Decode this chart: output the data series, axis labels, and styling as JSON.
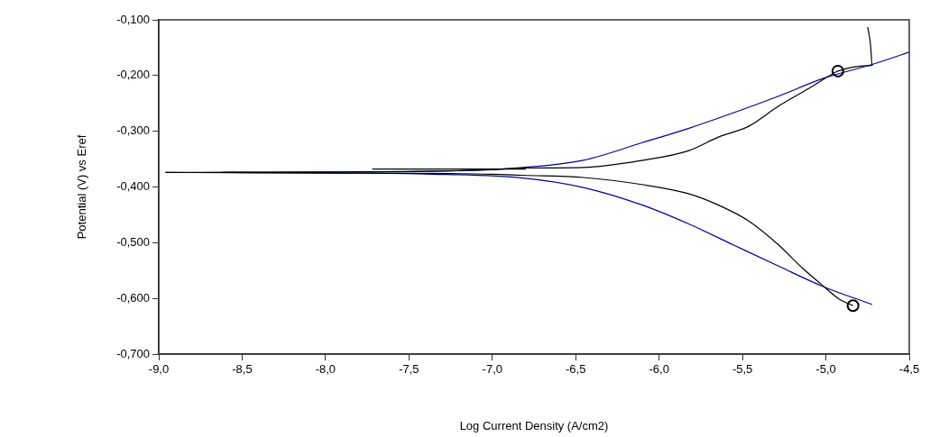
{
  "chart_data": {
    "type": "line",
    "xlabel": "Log Current Density (A/cm2)",
    "ylabel": "Potential (V) vs Eref",
    "xlim": [
      -9.0,
      -4.5
    ],
    "ylim": [
      -0.7,
      -0.1
    ],
    "xticks": [
      {
        "value": -9.0,
        "label": "-9,0"
      },
      {
        "value": -8.5,
        "label": "-8,5"
      },
      {
        "value": -8.0,
        "label": "-8,0"
      },
      {
        "value": -7.5,
        "label": "-7,5"
      },
      {
        "value": -7.0,
        "label": "-7,0"
      },
      {
        "value": -6.5,
        "label": "-6,5"
      },
      {
        "value": -6.0,
        "label": "-6,0"
      },
      {
        "value": -5.5,
        "label": "-5,5"
      },
      {
        "value": -5.0,
        "label": "-5,0"
      },
      {
        "value": -4.5,
        "label": "-4,5"
      }
    ],
    "yticks": [
      {
        "value": -0.7,
        "label": "-0,700"
      },
      {
        "value": -0.6,
        "label": "-0,600"
      },
      {
        "value": -0.5,
        "label": "-0,500"
      },
      {
        "value": -0.4,
        "label": "-0,400"
      },
      {
        "value": -0.3,
        "label": "-0,300"
      },
      {
        "value": -0.2,
        "label": "-0,200"
      },
      {
        "value": -0.1,
        "label": "-0,100"
      }
    ],
    "series": [
      {
        "color": "#000000",
        "x": [
          -8.96,
          -8.0,
          -7.0,
          -6.815,
          -6.454,
          -6.096,
          -5.825,
          -5.641,
          -5.463,
          -5.284,
          -5.101,
          -4.96,
          -4.928,
          -4.722,
          -4.733,
          -4.749
        ],
        "values": [
          -0.374,
          -0.373,
          -0.369,
          -0.366,
          -0.365,
          -0.352,
          -0.335,
          -0.31,
          -0.291,
          -0.255,
          -0.223,
          -0.197,
          -0.192,
          -0.182,
          -0.142,
          -0.113
        ]
      },
      {
        "color": "#000000",
        "x": [
          -8.96,
          -8.0,
          -7.0,
          -6.815,
          -6.454,
          -6.096,
          -5.825,
          -5.641,
          -5.463,
          -5.284,
          -5.139,
          -5.03,
          -4.922,
          -4.837
        ],
        "values": [
          -0.374,
          -0.375,
          -0.377,
          -0.379,
          -0.383,
          -0.396,
          -0.412,
          -0.433,
          -0.461,
          -0.504,
          -0.546,
          -0.574,
          -0.601,
          -0.613
        ]
      },
      {
        "color": "#000000",
        "x": [
          -7.72,
          -6.8
        ],
        "values": [
          -0.368,
          -0.368
        ]
      },
      {
        "color": "#000099",
        "x": [
          -8.62,
          -7.36,
          -6.815,
          -6.454,
          -6.096,
          -5.825,
          -5.555,
          -5.284,
          -5.014,
          -4.722,
          -4.5
        ],
        "values": [
          -0.374,
          -0.372,
          -0.365,
          -0.352,
          -0.32,
          -0.295,
          -0.267,
          -0.237,
          -0.205,
          -0.18,
          -0.158
        ]
      },
      {
        "color": "#000099",
        "x": [
          -8.62,
          -7.36,
          -6.815,
          -6.454,
          -6.096,
          -5.825,
          -5.555,
          -5.284,
          -5.014,
          -4.722
        ],
        "values": [
          -0.374,
          -0.377,
          -0.384,
          -0.401,
          -0.433,
          -0.466,
          -0.504,
          -0.542,
          -0.579,
          -0.611
        ]
      },
      {
        "type": "scatter",
        "color": "#000000",
        "marker": "circle",
        "x": [
          -4.928,
          -4.837
        ],
        "values": [
          -0.192,
          -0.613
        ]
      }
    ]
  }
}
